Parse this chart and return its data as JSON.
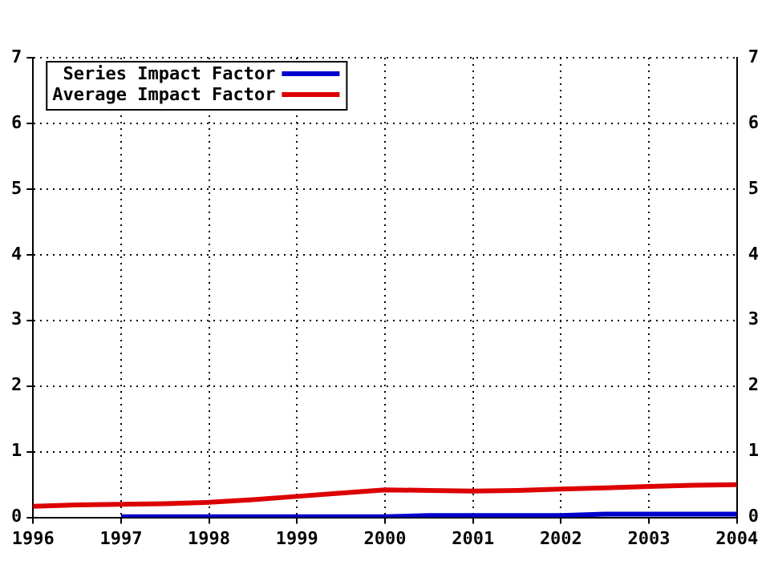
{
  "chart_data": {
    "type": "line",
    "x": [
      1996,
      1996.5,
      1997,
      1997.5,
      1998,
      1998.5,
      1999,
      1999.5,
      2000,
      2000.5,
      2001,
      2001.5,
      2002,
      2002.5,
      2003,
      2003.5,
      2004
    ],
    "series": [
      {
        "name": "Series Impact Factor",
        "color": "#0000cc",
        "x": [
          1997,
          1997.5,
          1998,
          1998.5,
          1999,
          1999.5,
          2000,
          2000.5,
          2001,
          2001.5,
          2002,
          2002.5,
          2003,
          2003.5,
          2004
        ],
        "values": [
          0.01,
          0.01,
          0.01,
          0.01,
          0.01,
          0.01,
          0.01,
          0.03,
          0.03,
          0.03,
          0.03,
          0.05,
          0.05,
          0.05,
          0.05
        ]
      },
      {
        "name": "Average Impact Factor",
        "color": "#dd0000",
        "values": [
          0.17,
          0.19,
          0.2,
          0.21,
          0.23,
          0.27,
          0.32,
          0.37,
          0.42,
          0.41,
          0.4,
          0.41,
          0.43,
          0.45,
          0.47,
          0.49,
          0.5
        ]
      }
    ],
    "xlim": [
      1996,
      2004
    ],
    "xticks": [
      1996,
      1997,
      1998,
      1999,
      2000,
      2001,
      2002,
      2003,
      2004
    ],
    "ylim": [
      0,
      7
    ],
    "yticks": [
      0,
      1,
      2,
      3,
      4,
      5,
      6,
      7
    ],
    "y2lim": [
      0,
      7
    ],
    "y2ticks": [
      0,
      1,
      2,
      3,
      4,
      5,
      6,
      7
    ],
    "grid": true,
    "legend": "top left",
    "marker": "none",
    "line_style": "solid"
  }
}
